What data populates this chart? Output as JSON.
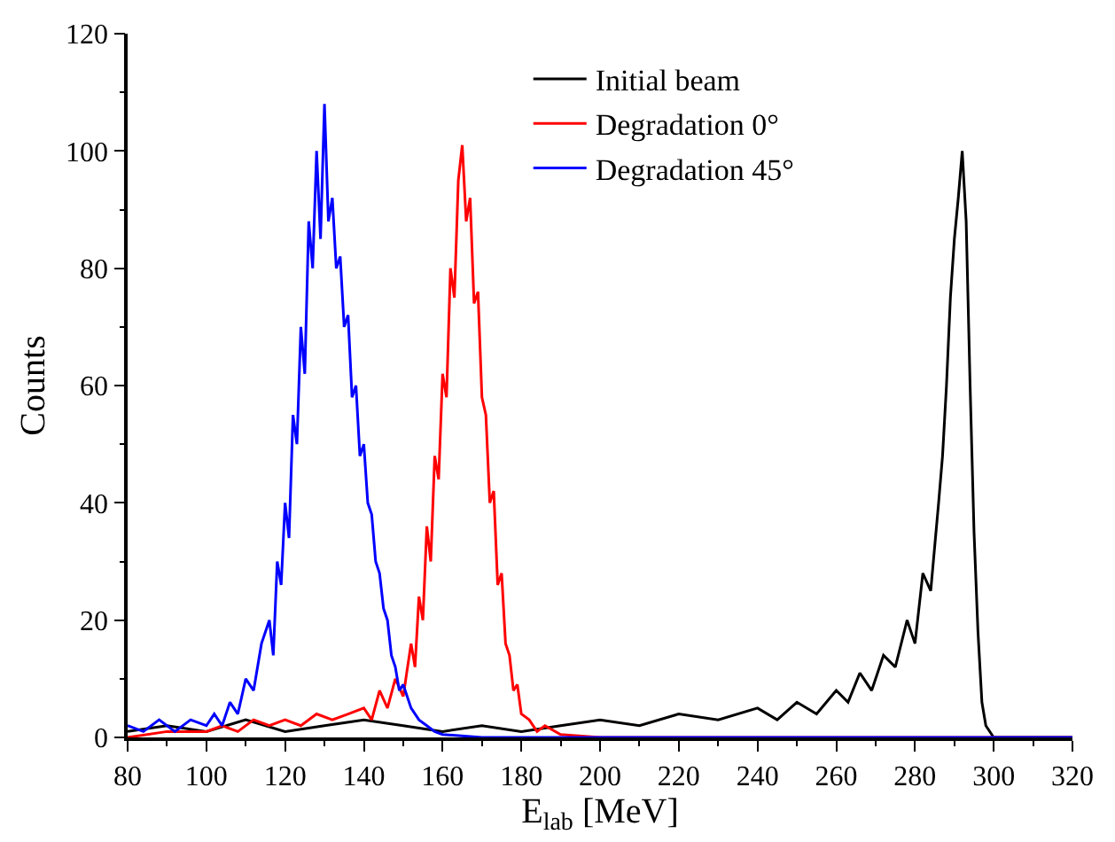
{
  "chart_data": {
    "type": "line",
    "xlabel": "E$_{lab}$ [MeV]",
    "ylabel": "Counts",
    "xlim": [
      80,
      320
    ],
    "xticks": [
      80,
      100,
      120,
      140,
      160,
      180,
      200,
      220,
      240,
      260,
      280,
      300,
      320
    ],
    "ylim": [
      0,
      120
    ],
    "yticks": [
      0,
      20,
      40,
      60,
      80,
      100,
      120
    ],
    "legend": "top right",
    "marker": "none",
    "line_style": "solid",
    "series": [
      {
        "name": "Initial beam",
        "color": "#000000",
        "x": [
          80,
          90,
          100,
          110,
          120,
          130,
          140,
          150,
          160,
          170,
          180,
          190,
          200,
          210,
          220,
          230,
          240,
          245,
          250,
          255,
          260,
          263,
          266,
          269,
          272,
          275,
          278,
          280,
          282,
          284,
          286,
          287,
          288,
          289,
          290,
          291,
          292,
          293,
          294,
          295,
          296,
          297,
          298,
          300,
          310,
          320
        ],
        "values": [
          1,
          2,
          1,
          3,
          1,
          2,
          3,
          2,
          1,
          2,
          1,
          2,
          3,
          2,
          4,
          3,
          5,
          3,
          6,
          4,
          8,
          6,
          11,
          8,
          14,
          12,
          20,
          16,
          28,
          25,
          40,
          48,
          60,
          75,
          85,
          92,
          100,
          88,
          60,
          35,
          18,
          6,
          2,
          0,
          0,
          0
        ]
      },
      {
        "name": "Degradation 0°",
        "color": "#ff0000",
        "x": [
          80,
          90,
          100,
          104,
          108,
          112,
          116,
          120,
          124,
          128,
          132,
          136,
          140,
          142,
          144,
          146,
          148,
          150,
          152,
          153,
          154,
          155,
          156,
          157,
          158,
          159,
          160,
          161,
          162,
          163,
          164,
          165,
          166,
          167,
          168,
          169,
          170,
          171,
          172,
          173,
          174,
          175,
          176,
          177,
          178,
          179,
          180,
          182,
          184,
          186,
          190,
          200,
          250,
          320
        ],
        "values": [
          0,
          1,
          1,
          2,
          1,
          3,
          2,
          3,
          2,
          4,
          3,
          4,
          5,
          3,
          8,
          5,
          10,
          7,
          16,
          12,
          24,
          20,
          36,
          30,
          48,
          44,
          62,
          58,
          80,
          75,
          95,
          101,
          88,
          92,
          74,
          76,
          58,
          55,
          40,
          42,
          26,
          28,
          16,
          14,
          8,
          9,
          4,
          3,
          1,
          2,
          0.5,
          0,
          0,
          0
        ]
      },
      {
        "name": "Degradation 45°",
        "color": "#0000ff",
        "x": [
          80,
          84,
          88,
          92,
          96,
          100,
          102,
          104,
          106,
          108,
          110,
          112,
          114,
          116,
          117,
          118,
          119,
          120,
          121,
          122,
          123,
          124,
          125,
          126,
          127,
          128,
          129,
          130,
          131,
          132,
          133,
          134,
          135,
          136,
          137,
          138,
          139,
          140,
          141,
          142,
          143,
          144,
          145,
          146,
          147,
          148,
          149,
          150,
          152,
          154,
          156,
          158,
          160,
          170,
          200,
          250,
          320
        ],
        "values": [
          2,
          1,
          3,
          1,
          3,
          2,
          4,
          2,
          6,
          4,
          10,
          8,
          16,
          20,
          14,
          30,
          26,
          40,
          34,
          55,
          50,
          70,
          62,
          88,
          80,
          100,
          85,
          108,
          88,
          92,
          80,
          82,
          70,
          72,
          58,
          60,
          48,
          50,
          40,
          38,
          30,
          28,
          22,
          20,
          14,
          12,
          8,
          9,
          5,
          3,
          2,
          1,
          0.5,
          0,
          0,
          0,
          0
        ]
      }
    ]
  }
}
